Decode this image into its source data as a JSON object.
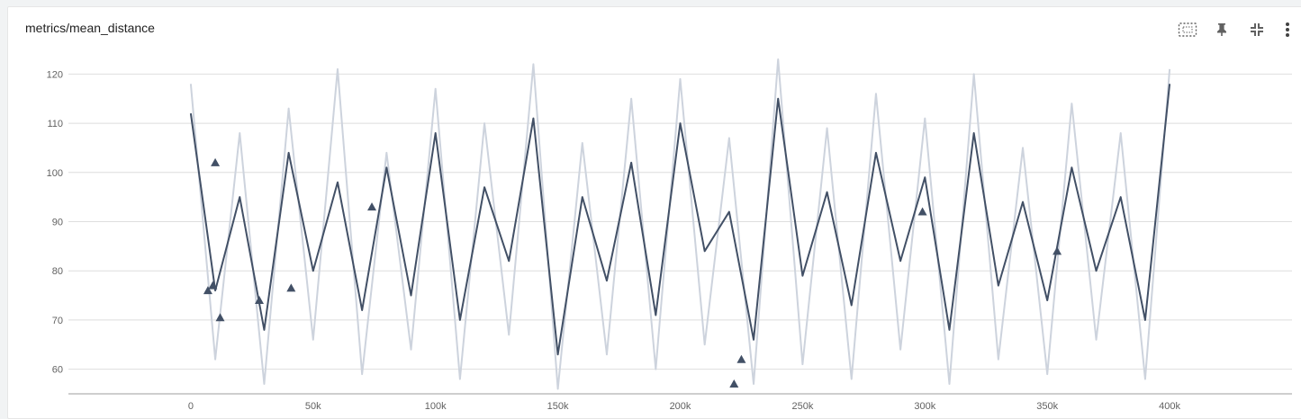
{
  "card": {
    "title": "metrics/mean_distance",
    "toolbar": [
      {
        "name": "fit-domain-icon",
        "label": "Fit domain to data"
      },
      {
        "name": "pin-icon",
        "label": "Pin card"
      },
      {
        "name": "collapse-icon",
        "label": "Collapse"
      },
      {
        "name": "more-vert-icon",
        "label": "More"
      }
    ]
  },
  "colors": {
    "raw_series": "#cdd3dd",
    "smoothed_series": "#425066",
    "grid": "#dedede",
    "axis": "#9e9e9e"
  },
  "chart_data": {
    "type": "line",
    "title": "metrics/mean_distance",
    "xlabel": "",
    "ylabel": "",
    "xlim": [
      -50000,
      450000
    ],
    "ylim": [
      55,
      125
    ],
    "x_ticks": [
      0,
      50000,
      100000,
      150000,
      200000,
      250000,
      300000,
      350000,
      400000
    ],
    "x_tick_labels": [
      "0",
      "50k",
      "100k",
      "150k",
      "200k",
      "250k",
      "300k",
      "350k",
      "400k"
    ],
    "y_ticks": [
      60,
      70,
      80,
      90,
      100,
      110,
      120
    ],
    "y_tick_labels": [
      "60",
      "70",
      "80",
      "90",
      "100",
      "110",
      "120"
    ],
    "grid": true,
    "legend": "none",
    "series": [
      {
        "role": "raw",
        "x": [
          0,
          10000,
          20000,
          30000,
          40000,
          50000,
          60000,
          70000,
          80000,
          90000,
          100000,
          110000,
          120000,
          130000,
          140000,
          150000,
          160000,
          170000,
          180000,
          190000,
          200000,
          210000,
          220000,
          230000,
          240000,
          250000,
          260000,
          270000,
          280000,
          290000,
          300000,
          310000,
          320000,
          330000,
          340000,
          350000,
          360000,
          370000,
          380000,
          390000,
          400000
        ],
        "values": [
          118,
          62,
          108,
          57,
          113,
          66,
          121,
          59,
          104,
          64,
          117,
          58,
          110,
          67,
          122,
          56,
          106,
          63,
          115,
          60,
          119,
          65,
          107,
          57,
          123,
          61,
          109,
          58,
          116,
          64,
          111,
          57,
          120,
          62,
          105,
          59,
          114,
          66,
          108,
          58,
          121
        ]
      },
      {
        "role": "smoothed",
        "x": [
          0,
          10000,
          20000,
          30000,
          40000,
          50000,
          60000,
          70000,
          80000,
          90000,
          100000,
          110000,
          120000,
          130000,
          140000,
          150000,
          160000,
          170000,
          180000,
          190000,
          200000,
          210000,
          220000,
          230000,
          240000,
          250000,
          260000,
          270000,
          280000,
          290000,
          300000,
          310000,
          320000,
          330000,
          340000,
          350000,
          360000,
          370000,
          380000,
          390000,
          400000
        ],
        "values": [
          112,
          76,
          95,
          68,
          104,
          80,
          98,
          72,
          101,
          75,
          108,
          70,
          97,
          82,
          111,
          63,
          95,
          78,
          102,
          71,
          110,
          84,
          92,
          66,
          115,
          79,
          96,
          73,
          104,
          82,
          99,
          68,
          108,
          77,
          94,
          74,
          101,
          80,
          95,
          70,
          118
        ]
      }
    ],
    "markers": [
      {
        "x": 7000,
        "y": 76
      },
      {
        "x": 9000,
        "y": 77
      },
      {
        "x": 10000,
        "y": 102
      },
      {
        "x": 12000,
        "y": 70.5
      },
      {
        "x": 28000,
        "y": 74
      },
      {
        "x": 41000,
        "y": 76.5
      },
      {
        "x": 74000,
        "y": 93
      },
      {
        "x": 222000,
        "y": 57
      },
      {
        "x": 225000,
        "y": 62
      },
      {
        "x": 299000,
        "y": 92
      },
      {
        "x": 354000,
        "y": 84
      }
    ]
  }
}
